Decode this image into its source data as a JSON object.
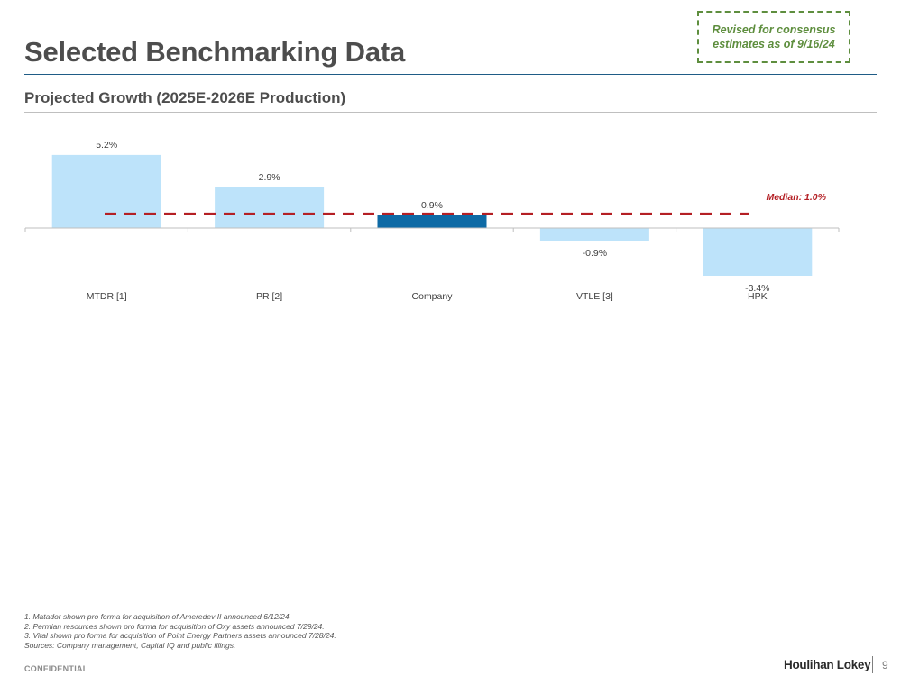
{
  "header": {
    "title": "Selected Benchmarking Data",
    "revised_note": "Revised for consensus estimates as of 9/16/24"
  },
  "section": {
    "subtitle": "Projected Growth (2025E-2026E Production)"
  },
  "chart_data": {
    "type": "bar",
    "title": "Projected Growth (2025E-2026E Production)",
    "categories": [
      "MTDR [1]",
      "PR [2]",
      "Company",
      "VTLE [3]",
      "HPK"
    ],
    "values": [
      5.2,
      2.9,
      0.9,
      -0.9,
      -3.4
    ],
    "value_labels": [
      "5.2%",
      "2.9%",
      "0.9%",
      "-0.9%",
      "-3.4%"
    ],
    "unit": "%",
    "highlight_category": "Company",
    "median": 1.0,
    "median_label": "Median: 1.0%",
    "xlabel": "",
    "ylabel": "",
    "grid": false,
    "colors": {
      "bar": "#bde3fa",
      "highlight": "#0e6aa5",
      "median": "#b41f24",
      "axis": "#bfbfbf",
      "label": "#404040"
    }
  },
  "footnotes": [
    "1. Matador shown pro forma for acquisition of Ameredev II announced 6/12/24.",
    "2. Permian resources shown pro forma for acquisition of Oxy assets announced 7/29/24.",
    "3. Vital shown pro forma for acquisition of Point Energy Partners assets announced 7/28/24.",
    "Sources: Company management, Capital IQ and public filings."
  ],
  "footer": {
    "confidential": "CONFIDENTIAL",
    "brand": "Houlihan Lokey",
    "page_number": "9"
  }
}
